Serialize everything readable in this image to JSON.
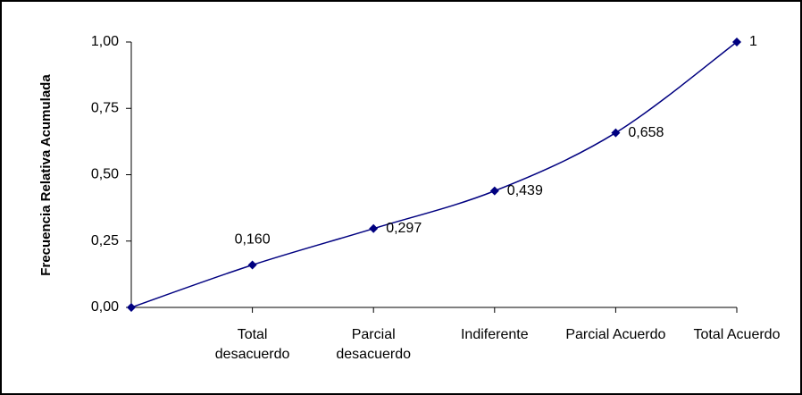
{
  "chart_data": {
    "type": "line",
    "y_label": "Frecuencia Relativa Acumulada",
    "categories": [
      null,
      "Total desacuerdo",
      "Parcial desacuerdo",
      "Indiferente",
      "Parcial Acuerdo",
      "Total Acuerdo"
    ],
    "series": [
      {
        "name": null,
        "color": "#000080",
        "values": [
          0,
          0.16,
          0.297,
          0.439,
          0.658,
          1
        ],
        "value_labels": [
          null,
          "0,160",
          "0,297",
          "0,439",
          "0,658",
          "1"
        ]
      }
    ],
    "ylim": [
      0,
      1
    ],
    "yticks": [
      {
        "value": 0,
        "label": "0,00"
      },
      {
        "value": 0.25,
        "label": "0,25"
      },
      {
        "value": 0.5,
        "label": "0,50"
      },
      {
        "value": 0.75,
        "label": "0,75"
      },
      {
        "value": 1,
        "label": "1,00"
      }
    ],
    "grid": false,
    "smooth": true
  }
}
